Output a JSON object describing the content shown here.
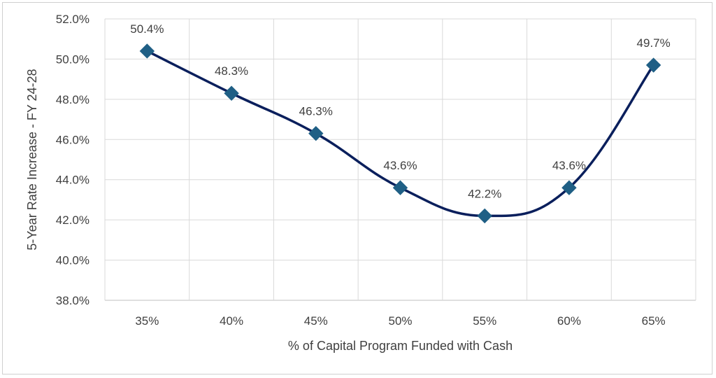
{
  "chart_data": {
    "type": "line",
    "x": [
      "35%",
      "40%",
      "45%",
      "50%",
      "55%",
      "60%",
      "65%"
    ],
    "series": [
      {
        "values": [
          50.4,
          48.3,
          46.3,
          43.6,
          42.2,
          43.6,
          49.7
        ],
        "labels": [
          "50.4%",
          "48.3%",
          "46.3%",
          "43.6%",
          "42.2%",
          "43.6%",
          "49.7%"
        ],
        "color": "#0a1f5c",
        "marker_color": "#1f5f85",
        "marker": "diamond",
        "smooth": true
      }
    ],
    "xlabel": "% of Capital Program Funded with Cash",
    "ylabel": "5-Year Rate Increase - FY 24-28",
    "ylim": [
      38.0,
      52.0
    ],
    "y_ticks": [
      "38.0%",
      "40.0%",
      "42.0%",
      "44.0%",
      "46.0%",
      "48.0%",
      "50.0%",
      "52.0%"
    ],
    "grid": true,
    "legend": "none"
  }
}
